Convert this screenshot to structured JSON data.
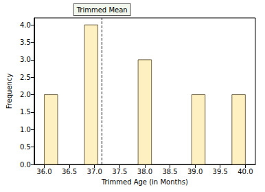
{
  "chart_data": {
    "type": "histogram",
    "x_label": "Trimmed Age (in Months)",
    "y_label": "Frequency",
    "bins": [
      36,
      36.2667,
      36.5333,
      36.8,
      37.0667,
      37.3333,
      37.6,
      37.8667,
      38.1333,
      38.4,
      38.6667,
      38.9333,
      39.2,
      39.4667,
      39.7333,
      40
    ],
    "values": [
      2,
      0,
      0,
      4,
      0,
      0,
      0,
      3,
      0,
      0,
      0,
      2,
      0,
      0,
      2
    ],
    "color": "#fff0c1",
    "xlim": [
      35.8,
      40.2
    ],
    "xticks": [
      {
        "value": 36,
        "label": "36.0"
      },
      {
        "value": 36.5,
        "label": "36.5"
      },
      {
        "value": 37,
        "label": "37.0"
      },
      {
        "value": 37.5,
        "label": "37.5"
      },
      {
        "value": 38,
        "label": "38.0"
      },
      {
        "value": 38.5,
        "label": "38.5"
      },
      {
        "value": 39,
        "label": "39.0"
      },
      {
        "value": 39.5,
        "label": "39.5"
      },
      {
        "value": 40,
        "label": "40.0"
      }
    ],
    "ylim": [
      0,
      4.2
    ],
    "yticks": [
      {
        "value": 0,
        "label": "0.0"
      },
      {
        "value": 0.5,
        "label": "0.5"
      },
      {
        "value": 1,
        "label": "1.0"
      },
      {
        "value": 1.5,
        "label": "1.5"
      },
      {
        "value": 2,
        "label": "2.0"
      },
      {
        "value": 2.5,
        "label": "2.5"
      },
      {
        "value": 3,
        "label": "3.0"
      },
      {
        "value": 3.5,
        "label": "3.5"
      },
      {
        "value": 4,
        "label": "4.0"
      }
    ],
    "vline": {
      "x": 37.15,
      "label": "Trimmed Mean",
      "line_style": "dashed"
    },
    "grid": false
  }
}
